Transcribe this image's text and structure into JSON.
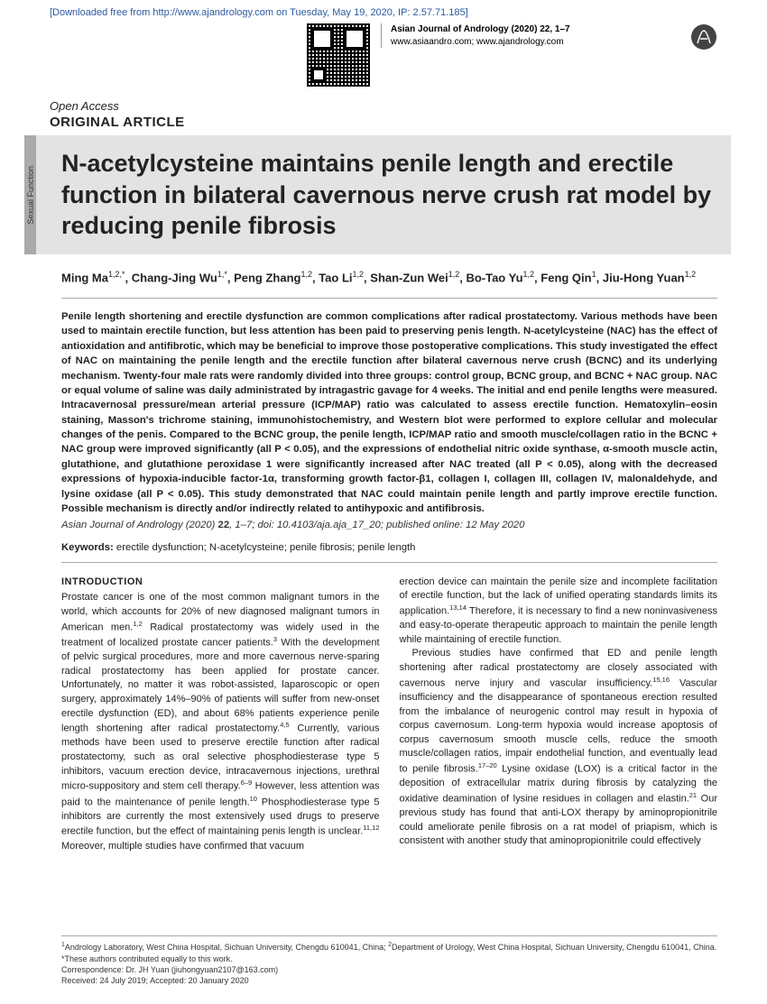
{
  "download_banner": "[Downloaded free from http://www.ajandrology.com on Tuesday, May 19, 2020, IP: 2.57.71.185]",
  "journal_line1": "Asian Journal of Andrology (2020) 22, 1–7",
  "journal_line2": "www.asiaandro.com; www.ajandrology.com",
  "open_access": "Open Access",
  "article_type": "ORIGINAL ARTICLE",
  "side_tab": "Sexual Function",
  "title": "N-acetylcysteine maintains penile length and erectile function in bilateral cavernous nerve crush rat model by reducing penile fibrosis",
  "authors_html": "Ming Ma<sup>1,2,*</sup>, Chang-Jing Wu<sup>1,*</sup>, Peng Zhang<sup>1,2</sup>, Tao Li<sup>1,2</sup>, Shan-Zun Wei<sup>1,2</sup>, Bo-Tao Yu<sup>1,2</sup>, Feng Qin<sup>1</sup>, Jiu-Hong Yuan<sup>1,2</sup>",
  "abstract": "Penile length shortening and erectile dysfunction are common complications after radical prostatectomy. Various methods have been used to maintain erectile function, but less attention has been paid to preserving penis length. N-acetylcysteine (NAC) has the effect of antioxidation and antifibrotic, which may be beneficial to improve those postoperative complications. This study investigated the effect of NAC on maintaining the penile length and the erectile function after bilateral cavernous nerve crush (BCNC) and its underlying mechanism. Twenty-four male rats were randomly divided into three groups: control group, BCNC group, and BCNC + NAC group. NAC or equal volume of saline was daily administrated by intragastric gavage for 4 weeks. The initial and end penile lengths were measured. Intracavernosal pressure/mean arterial pressure (ICP/MAP) ratio was calculated to assess erectile function. Hematoxylin–eosin staining, Masson's trichrome staining, immunohistochemistry, and Western blot were performed to explore cellular and molecular changes of the penis. Compared to the BCNC group, the penile length, ICP/MAP ratio and smooth muscle/collagen ratio in the BCNC + NAC group were improved significantly (all P < 0.05), and the expressions of endothelial nitric oxide synthase, α-smooth muscle actin, glutathione, and glutathione peroxidase 1 were significantly increased after NAC treated (all P < 0.05), along with the decreased expressions of hypoxia-inducible factor-1α, transforming growth factor-β1, collagen I, collagen III, collagen IV, malonaldehyde, and lysine oxidase (all P < 0.05). This study demonstrated that NAC could maintain penile length and partly improve erectile function. Possible mechanism is directly and/or indirectly related to antihypoxic and antifibrosis.",
  "citation_html": "<em>Asian Journal of Andrology</em> (2020) <b class='up'>22</b>, 1–7; doi: 10.4103/aja.aja_17_20; published online: 12 May 2020",
  "keywords_label": "Keywords:",
  "keywords": "erectile dysfunction; N-acetylcysteine; penile fibrosis; penile length",
  "intro_heading": "INTRODUCTION",
  "col1": "Prostate cancer is one of the most common malignant tumors in the world, which accounts for 20% of new diagnosed malignant tumors in American men.<sup>1,2</sup> Radical prostatectomy was widely used in the treatment of localized prostate cancer patients.<sup>3</sup> With the development of pelvic surgical procedures, more and more cavernous nerve-sparing radical prostatectomy has been applied for prostate cancer. Unfortunately, no matter it was robot-assisted, laparoscopic or open surgery, approximately 14%–90% of patients will suffer from new-onset erectile dysfunction (ED), and about 68% patients experience penile length shortening after radical prostatectomy.<sup>4,5</sup> Currently, various methods have been used to preserve erectile function after radical prostatectomy, such as oral selective phosphodiesterase type 5 inhibitors, vacuum erection device, intracavernous injections, urethral micro-suppository and stem cell therapy.<sup>6–9</sup> However, less attention was paid to the maintenance of penile length.<sup>10</sup> Phosphodiesterase type 5 inhibitors are currently the most extensively used drugs to preserve erectile function, but the effect of maintaining penis length is unclear.<sup>11,12</sup> Moreover, multiple studies have confirmed that vacuum",
  "col2_p1": "erection device can maintain the penile size and incomplete facilitation of erectile function, but the lack of unified operating standards limits its application.<sup>13,14</sup> Therefore, it is necessary to find a new noninvasiveness and easy-to-operate therapeutic approach to maintain the penile length while maintaining of erectile function.",
  "col2_p2": "Previous studies have confirmed that ED and penile length shortening after radical prostatectomy are closely associated with cavernous nerve injury and vascular insufficiency.<sup>15,16</sup> Vascular insufficiency and the disappearance of spontaneous erection resulted from the imbalance of neurogenic control may result in hypoxia of corpus cavernosum. Long-term hypoxia would increase apoptosis of corpus cavernosum smooth muscle cells, reduce the smooth muscle/collagen ratios, impair endothelial function, and eventually lead to penile fibrosis.<sup>17–20</sup> Lysine oxidase (LOX) is a critical factor in the deposition of extracellular matrix during fibrosis by catalyzing the oxidative deamination of lysine residues in collagen and elastin.<sup>21</sup> Our previous study has found that anti-LOX therapy by aminopropionitrile could ameliorate penile fibrosis on a rat model of priapism, which is consistent with another study that aminopropionitrile could effectively",
  "footer": {
    "affil": "<sup>1</sup>Andrology Laboratory, West China Hospital, Sichuan University, Chengdu 610041, China; <sup>2</sup>Department of Urology, West China Hospital, Sichuan University, Chengdu 610041, China.",
    "equal": "*These authors contributed equally to this work.",
    "corr": "Correspondence: Dr. JH Yuan (jiuhongyuan2107@163.com)",
    "dates": "Received: 24 July 2019; Accepted: 20 January 2020"
  },
  "colors": {
    "banner": "#2b5aa0",
    "strip_bg": "#e3e3e3",
    "tab_bg": "#aaaaaa",
    "rule": "#aaaaaa"
  }
}
